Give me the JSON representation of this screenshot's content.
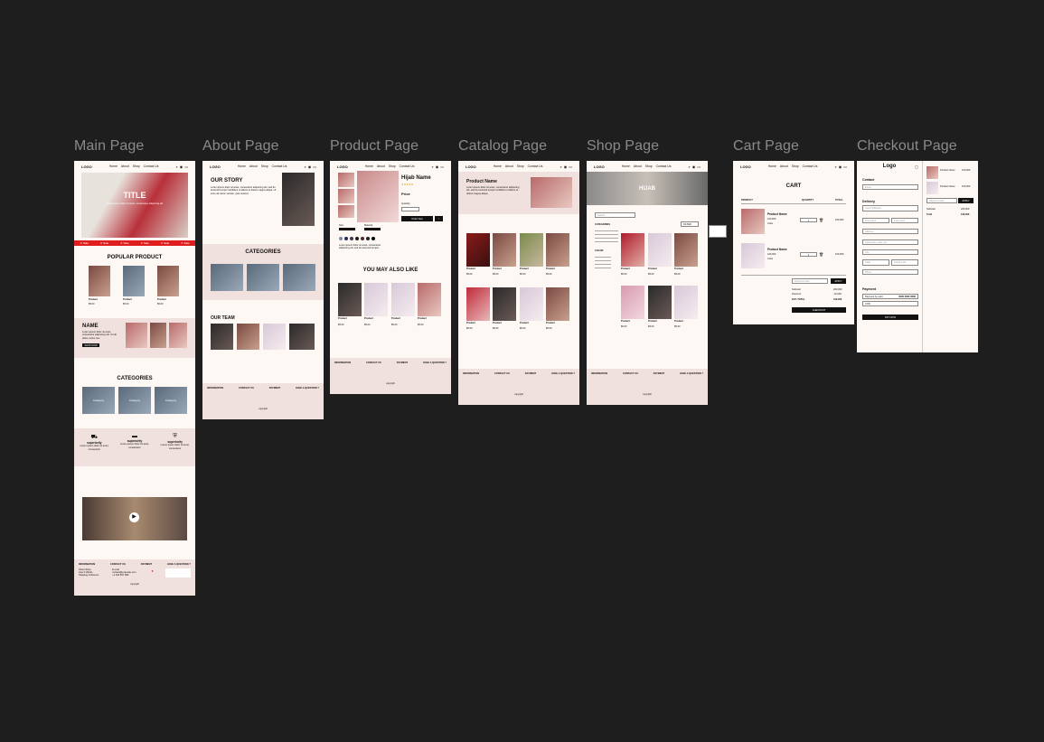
{
  "frames": {
    "main": "Main Page",
    "about": "About Page",
    "product": "Product Page",
    "catalog": "Catalog Page",
    "shop": "Shop Page",
    "cart": "Cart Page",
    "checkout": "Checkout Page"
  },
  "nav": {
    "logo": "LOGO",
    "links": [
      "Home",
      "About",
      "Shop",
      "Contact Us"
    ],
    "icons": [
      "search-icon",
      "user-icon",
      "cart-icon"
    ]
  },
  "main": {
    "hero_title": "TITLE",
    "hero_sub": "Lorem ipsum dolor sit amet, consectetur adipiscing elit",
    "popular_title": "POPULAR PRODUCT",
    "products": [
      {
        "name": "Product",
        "price": "$5.00"
      },
      {
        "name": "Product",
        "price": "$5.00"
      },
      {
        "name": "Product",
        "price": "$5.00"
      }
    ],
    "name_title": "NAME",
    "name_text": "Lorem ipsum dolor sit amet, consectetur adipiscing elit. Ut elit tellus, luctus nec.",
    "name_btn": "SHOP NOW",
    "categories_title": "CATEGORIES",
    "categories": [
      "Category",
      "Category",
      "Category"
    ],
    "features": [
      {
        "title": "superiority",
        "text": "Lorem ipsum dolor sit amet, consectetur"
      },
      {
        "title": "superiority",
        "text": "Lorem ipsum dolor sit amet, consectetur"
      },
      {
        "title": "superiority",
        "text": "Lorem ipsum dolor sit amet, consectetur"
      }
    ]
  },
  "footer": {
    "cols": [
      "INFORMATION",
      "CONTACT US",
      "PAYMENT",
      "HAVE A QUESTION ?"
    ],
    "info": "About Shop\nHow It Works\nShipping & Returns",
    "contact": "E-mail: contact@example.com\n+1 234 567 890",
    "copyright": "copyright"
  },
  "about": {
    "story_title": "OUR STORY",
    "story_text": "Lorem ipsum dolor sit amet, consectetur adipiscing elit, sed do eiusmod tempor incididunt ut labore et dolore magna aliqua. Ut enim ad minim veniam, quis nostrud.",
    "categories_title": "CATEGORIES",
    "team_title": "OUR TEAM"
  },
  "product": {
    "name": "Hijab Name",
    "stars": "★★★★★",
    "price": "Price",
    "qty_label": "Quantity",
    "order_btn": "Order Now",
    "size": "Size",
    "material": "Material",
    "desc": "Lorem ipsum dolor sit amet, consectetur adipiscing elit, sed do eiusmod tempor.",
    "also_like": "YOU MAY ALSO LIKE",
    "related": [
      {
        "name": "Product",
        "price": "$5.00"
      },
      {
        "name": "Product",
        "price": "$5.00"
      },
      {
        "name": "Product",
        "price": "$5.00"
      },
      {
        "name": "Product",
        "price": "$5.00"
      }
    ]
  },
  "catalog": {
    "banner_title": "Product Name",
    "banner_text": "Lorem ipsum dolor sit amet, consectetur adipiscing elit, sed do eiusmod tempor incididunt ut labore et dolore magna aliqua.",
    "items": [
      {
        "name": "Product",
        "price": "$5.00"
      },
      {
        "name": "Product",
        "price": "$5.00"
      },
      {
        "name": "Product",
        "price": "$5.00"
      },
      {
        "name": "Product",
        "price": "$5.00"
      },
      {
        "name": "Product",
        "price": "$5.00"
      },
      {
        "name": "Product",
        "price": "$5.00"
      },
      {
        "name": "Product",
        "price": "$5.00"
      },
      {
        "name": "Product",
        "price": "$5.00"
      }
    ]
  },
  "shop": {
    "banner": "HIJAB",
    "search_placeholder": "Search",
    "filter_btn": "FILTER",
    "filter_heading1": "CATEGORIES",
    "filter_heading2": "COLOR",
    "items": [
      {
        "name": "Product",
        "price": "$5.00"
      },
      {
        "name": "Product",
        "price": "$5.00"
      },
      {
        "name": "Product",
        "price": "$5.00"
      },
      {
        "name": "Product",
        "price": "$5.00"
      },
      {
        "name": "Product",
        "price": "$5.00"
      },
      {
        "name": "Product",
        "price": "$5.00"
      },
      {
        "name": "Product",
        "price": "$5.00"
      }
    ]
  },
  "cart": {
    "title": "CART",
    "cols": [
      "PRODUCT",
      "QUANTITY",
      "TOTAL"
    ],
    "items": [
      {
        "name": "Product Name",
        "price": "100,000",
        "color": "Color",
        "qty": "1",
        "total": "100,000"
      },
      {
        "name": "Product Name",
        "price": "100,000",
        "color": "Color",
        "qty": "1",
        "total": "100,000"
      }
    ],
    "discount_placeholder": "Discount code",
    "apply": "APPLY",
    "subtotal_label": "Subtotal",
    "subtotal": "200,000",
    "discount_label": "Discount",
    "discount": "-10,000",
    "total_label": "EST. TOTAL",
    "total": "190,000",
    "checkout_btn": "CHECKOUT"
  },
  "checkout": {
    "logo": "Logo",
    "contact": "Contact",
    "delivery": "Delivery",
    "payment": "Payment",
    "pay_btn": "PAY NOW",
    "fields": [
      "Email",
      "Country/Region",
      "First name",
      "Last name",
      "Address",
      "Apartment, suite, etc.",
      "City",
      "State",
      "Postal code",
      "Phone"
    ],
    "pay_options": [
      "Payment by card",
      "COD"
    ],
    "summary_items": [
      {
        "name": "Product Name",
        "price": "100,000"
      },
      {
        "name": "Product Name",
        "price": "100,000"
      }
    ],
    "discount_placeholder": "Discount code",
    "apply": "APPLY",
    "subtotal_label": "Subtotal",
    "subtotal": "200,000",
    "total_label": "Total",
    "total": "190,000",
    "card_value": "0000 0000 0000"
  }
}
